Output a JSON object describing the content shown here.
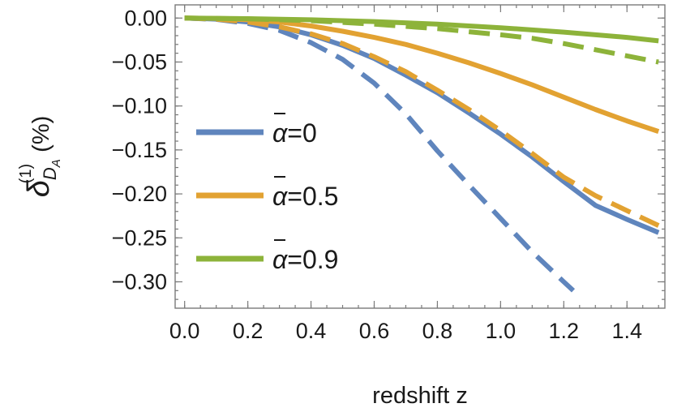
{
  "chart_data": {
    "type": "line",
    "xlabel": "redshift z",
    "ylabel": "(%)",
    "ylabel_symbol": "δ",
    "ylabel_superscript": "(1)",
    "ylabel_subscript": "D",
    "ylabel_subsubscript": "A",
    "xlim": [
      -0.03,
      1.52
    ],
    "ylim": [
      -0.33,
      0.015
    ],
    "xticks": [
      "0.0",
      "0.2",
      "0.4",
      "0.6",
      "0.8",
      "1.0",
      "1.2",
      "1.4"
    ],
    "yticks": [
      "0.00",
      "-0.05",
      "-0.10",
      "-0.15",
      "-0.20",
      "-0.25",
      "-0.30"
    ],
    "legend_position": "center-left",
    "legend": [
      {
        "symbol": "α",
        "text": "=0",
        "color": "#5f85bd"
      },
      {
        "symbol": "α",
        "text": "=0.5",
        "color": "#e2a232"
      },
      {
        "symbol": "α",
        "text": "=0.9",
        "color": "#8db33a"
      }
    ],
    "series": [
      {
        "color": "#5f85bd",
        "style": "solid",
        "points": [
          [
            0,
            0
          ],
          [
            0.1,
            -0.0012
          ],
          [
            0.2,
            -0.0045
          ],
          [
            0.3,
            -0.01
          ],
          [
            0.4,
            -0.019
          ],
          [
            0.5,
            -0.031
          ],
          [
            0.6,
            -0.046
          ],
          [
            0.7,
            -0.065
          ],
          [
            0.8,
            -0.085
          ],
          [
            0.9,
            -0.108
          ],
          [
            1.0,
            -0.132
          ],
          [
            1.1,
            -0.158
          ],
          [
            1.2,
            -0.186
          ],
          [
            1.3,
            -0.213
          ],
          [
            1.4,
            -0.229
          ],
          [
            1.5,
            -0.244
          ]
        ]
      },
      {
        "color": "#5f85bd",
        "style": "dashed",
        "points": [
          [
            0,
            0
          ],
          [
            0.1,
            -0.0015
          ],
          [
            0.2,
            -0.006
          ],
          [
            0.3,
            -0.014
          ],
          [
            0.4,
            -0.028
          ],
          [
            0.5,
            -0.047
          ],
          [
            0.6,
            -0.074
          ],
          [
            0.7,
            -0.109
          ],
          [
            0.8,
            -0.151
          ],
          [
            0.9,
            -0.19
          ],
          [
            1.0,
            -0.228
          ],
          [
            1.1,
            -0.266
          ],
          [
            1.2,
            -0.3
          ],
          [
            1.23,
            -0.31
          ]
        ]
      },
      {
        "color": "#e2a232",
        "style": "solid",
        "points": [
          [
            0,
            0
          ],
          [
            0.1,
            -0.0005
          ],
          [
            0.2,
            -0.002
          ],
          [
            0.3,
            -0.0045
          ],
          [
            0.4,
            -0.009
          ],
          [
            0.5,
            -0.015
          ],
          [
            0.6,
            -0.022
          ],
          [
            0.7,
            -0.03
          ],
          [
            0.8,
            -0.04
          ],
          [
            0.9,
            -0.051
          ],
          [
            1.0,
            -0.063
          ],
          [
            1.1,
            -0.076
          ],
          [
            1.2,
            -0.09
          ],
          [
            1.3,
            -0.104
          ],
          [
            1.4,
            -0.117
          ],
          [
            1.5,
            -0.129
          ]
        ]
      },
      {
        "color": "#e2a232",
        "style": "dashed",
        "points": [
          [
            0,
            0
          ],
          [
            0.1,
            -0.0012
          ],
          [
            0.2,
            -0.0045
          ],
          [
            0.3,
            -0.01
          ],
          [
            0.4,
            -0.018
          ],
          [
            0.5,
            -0.029
          ],
          [
            0.6,
            -0.044
          ],
          [
            0.7,
            -0.061
          ],
          [
            0.8,
            -0.082
          ],
          [
            0.9,
            -0.104
          ],
          [
            1.0,
            -0.128
          ],
          [
            1.1,
            -0.154
          ],
          [
            1.2,
            -0.181
          ],
          [
            1.3,
            -0.202
          ],
          [
            1.4,
            -0.219
          ],
          [
            1.5,
            -0.236
          ]
        ]
      },
      {
        "color": "#8db33a",
        "style": "solid",
        "points": [
          [
            0,
            0
          ],
          [
            0.2,
            -0.0007
          ],
          [
            0.4,
            -0.002
          ],
          [
            0.6,
            -0.004
          ],
          [
            0.8,
            -0.007
          ],
          [
            1.0,
            -0.011
          ],
          [
            1.2,
            -0.016
          ],
          [
            1.4,
            -0.022
          ],
          [
            1.5,
            -0.026
          ]
        ]
      },
      {
        "color": "#8db33a",
        "style": "dashed",
        "points": [
          [
            0,
            0
          ],
          [
            0.2,
            -0.001
          ],
          [
            0.4,
            -0.003
          ],
          [
            0.6,
            -0.007
          ],
          [
            0.8,
            -0.012
          ],
          [
            1.0,
            -0.019
          ],
          [
            1.1,
            -0.023
          ],
          [
            1.2,
            -0.029
          ],
          [
            1.3,
            -0.036
          ],
          [
            1.4,
            -0.043
          ],
          [
            1.5,
            -0.05
          ]
        ]
      }
    ]
  }
}
